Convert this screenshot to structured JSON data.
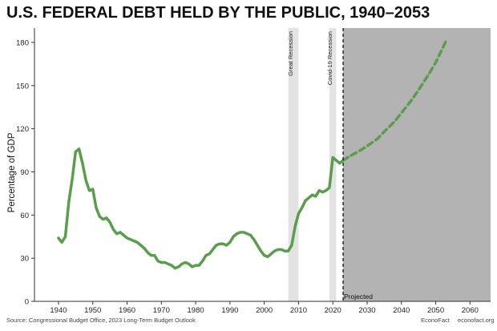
{
  "title": "U.S. FEDERAL DEBT HELD BY THE PUBLIC, 1940–2053",
  "footer": {
    "source": "Source: Congressional Budget Office, 2023 Long-Term Budget Outlook",
    "brand": "EconoFact",
    "site": "econofact.org"
  },
  "colors": {
    "line": "#5a9e4b",
    "projection_shade": "#b3b3b3",
    "recession_shade": "#e3e3e3"
  },
  "chart_data": {
    "type": "line",
    "title": "U.S. FEDERAL DEBT HELD BY THE PUBLIC, 1940–2053",
    "xlabel": "",
    "ylabel": "Percentage of GDP",
    "xlim": [
      1933,
      2066
    ],
    "ylim": [
      0,
      190
    ],
    "xticks": [
      1940,
      1950,
      1960,
      1970,
      1980,
      1990,
      2000,
      2010,
      2020,
      2030,
      2040,
      2050,
      2060
    ],
    "yticks": [
      0,
      30,
      60,
      90,
      120,
      150,
      180
    ],
    "grid": false,
    "recessions": [
      {
        "label": "Great Recession",
        "start": 2007,
        "end": 2010
      },
      {
        "label": "Covid-19 Recession",
        "start": 2019,
        "end": 2021
      }
    ],
    "projection": {
      "label": "Projected",
      "start": 2023
    },
    "series": [
      {
        "style": "solid",
        "x": [
          1940,
          1941,
          1942,
          1943,
          1944,
          1945,
          1946,
          1947,
          1948,
          1949,
          1950,
          1951,
          1952,
          1953,
          1954,
          1955,
          1956,
          1957,
          1958,
          1959,
          1960,
          1961,
          1962,
          1963,
          1964,
          1965,
          1966,
          1967,
          1968,
          1969,
          1970,
          1971,
          1972,
          1973,
          1974,
          1975,
          1976,
          1977,
          1978,
          1979,
          1980,
          1981,
          1982,
          1983,
          1984,
          1985,
          1986,
          1987,
          1988,
          1989,
          1990,
          1991,
          1992,
          1993,
          1994,
          1995,
          1996,
          1997,
          1998,
          1999,
          2000,
          2001,
          2002,
          2003,
          2004,
          2005,
          2006,
          2007,
          2008,
          2009,
          2010,
          2011,
          2012,
          2013,
          2014,
          2015,
          2016,
          2017,
          2018,
          2019,
          2020,
          2021,
          2022,
          2023
        ],
        "y": [
          44,
          41,
          45,
          69,
          85,
          104,
          106,
          96,
          84,
          77,
          78,
          65,
          59,
          57,
          58,
          55,
          50,
          47,
          48,
          46,
          44,
          43,
          42,
          41,
          39,
          37,
          34,
          32,
          32,
          28,
          27,
          27,
          26,
          25,
          23,
          24,
          26,
          27,
          26,
          24,
          25,
          25,
          28,
          32,
          33,
          36,
          39,
          40,
          40,
          39,
          41,
          45,
          47,
          48,
          48,
          47,
          46,
          43,
          39,
          35,
          32,
          31,
          33,
          35,
          36,
          36,
          35,
          35,
          39,
          52,
          61,
          65,
          70,
          72,
          74,
          73,
          77,
          76,
          77,
          79,
          100,
          98,
          96,
          98
        ]
      },
      {
        "style": "dashed",
        "x": [
          2023,
          2025,
          2028,
          2030,
          2033,
          2035,
          2038,
          2040,
          2043,
          2045,
          2048,
          2050,
          2053
        ],
        "y": [
          98,
          101,
          105,
          108,
          113,
          118,
          125,
          131,
          140,
          147,
          158,
          166,
          181
        ]
      }
    ]
  }
}
